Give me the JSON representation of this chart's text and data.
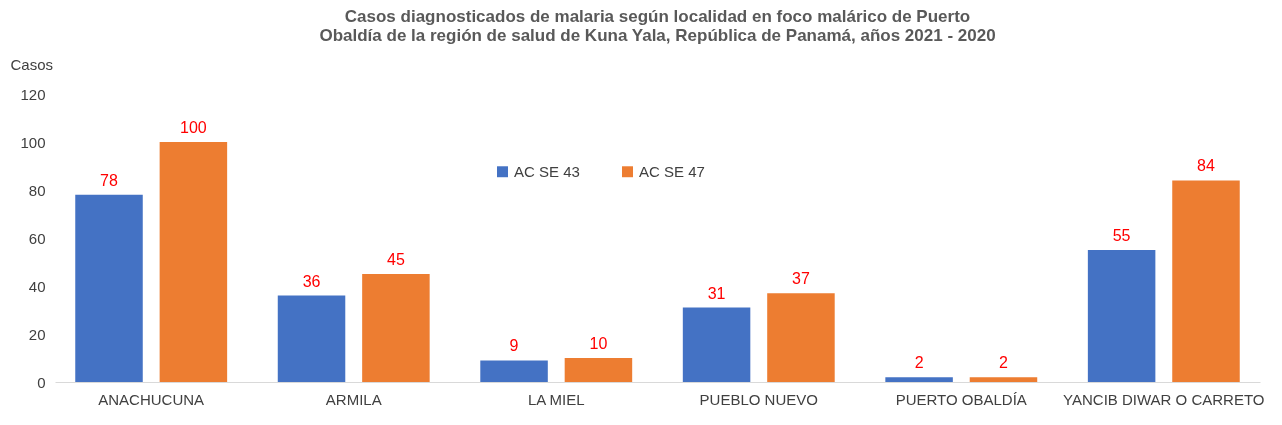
{
  "chart_data": {
    "type": "bar",
    "title": [
      "Casos diagnosticados  de malaria según localidad  en foco malárico de Puerto",
      "Obaldía  de la región de salud  de Kuna  Yala, República  de Panamá,  años 2021 - 2020"
    ],
    "ylabel": "Casos",
    "categories": [
      "ANACHUCUNA",
      "ARMILA",
      "LA MIEL",
      "PUEBLO NUEVO",
      "PUERTO OBALDÍA",
      "YANCIB DIWAR O CARRETO"
    ],
    "series": [
      {
        "name": "AC SE 43",
        "color": "#4472c4",
        "values": [
          78,
          36,
          9,
          31,
          2,
          55
        ]
      },
      {
        "name": "AC SE 47",
        "color": "#ed7d31",
        "values": [
          100,
          45,
          10,
          37,
          2,
          84
        ]
      }
    ],
    "ylim": [
      0,
      120
    ],
    "yticks": [
      0,
      20,
      40,
      60,
      80,
      100,
      120
    ],
    "grid": false,
    "legend": "top",
    "data_labels": true
  }
}
